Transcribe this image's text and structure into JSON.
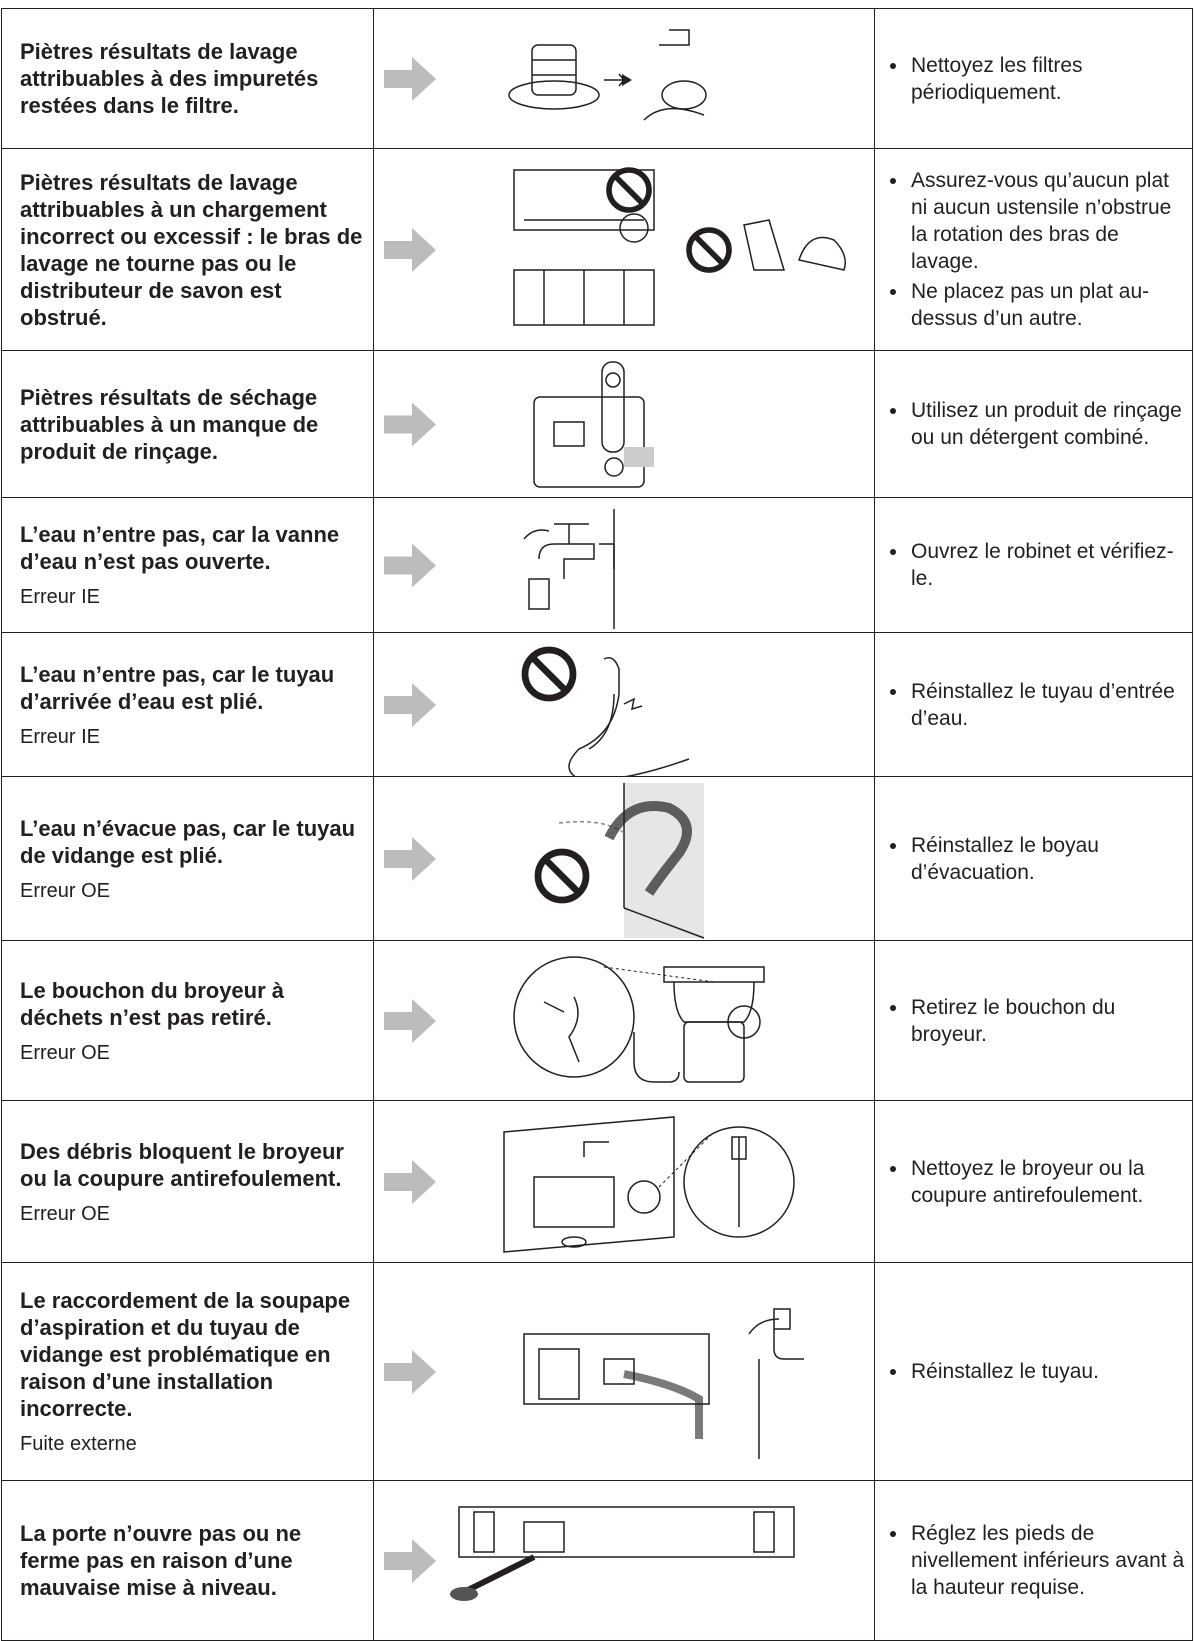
{
  "table": {
    "rows": [
      {
        "cause": "Piètres résultats de lavage attribuables à des impuretés restées dans le filtre.",
        "solutions": [
          "Nettoyez les filtres périodiquement."
        ]
      },
      {
        "cause": "Piètres résultats de lavage attribuables à un chargement incorrect ou excessif : le bras de lavage ne tourne pas ou le distributeur de savon est obstrué.",
        "solutions": [
          "Assurez-vous qu’aucun plat ni aucun ustensile n’obstrue la rotation des bras de lavage.",
          "Ne placez pas un plat au-dessus d’un autre."
        ]
      },
      {
        "cause": "Piètres résultats de séchage attribuables à un manque de produit de rinçage.",
        "solutions": [
          "Utilisez un produit de rinçage ou un détergent combiné."
        ]
      },
      {
        "cause": "L’eau n’entre pas, car la vanne d’eau n’est pas ouverte.",
        "code": "Erreur IE",
        "solutions": [
          "Ouvrez le robinet et vérifiez-le."
        ]
      },
      {
        "cause": "L’eau n’entre pas, car le tuyau d’arrivée d’eau est plié.",
        "code": "Erreur IE",
        "solutions": [
          "Réinstallez le tuyau d’entrée d’eau."
        ]
      },
      {
        "cause": "L’eau n’évacue pas, car le tuyau de vidange est plié.",
        "code": "Erreur OE",
        "solutions": [
          "Réinstallez le boyau d’évacuation."
        ]
      },
      {
        "cause": "Le bouchon du broyeur à déchets n’est pas retiré.",
        "code": "Erreur OE",
        "solutions": [
          "Retirez le bouchon du broyeur."
        ]
      },
      {
        "cause": "Des débris bloquent le broyeur ou la coupure antirefoulement.",
        "code": "Erreur OE",
        "solutions": [
          "Nettoyez le broyeur ou la coupure antirefoulement."
        ]
      },
      {
        "cause": "Le raccordement de la soupape d’aspiration et du tuyau de vidange est problématique en raison d’une installation incorrecte.",
        "code": "Fuite externe",
        "solutions": [
          "Réinstallez le tuyau."
        ]
      },
      {
        "cause": "La porte n’ouvre pas ou ne ferme pas en raison d’une mauvaise mise à niveau.",
        "solutions": [
          "Réglez les pieds de nivellement inférieurs avant à la hauteur requise."
        ]
      }
    ]
  }
}
